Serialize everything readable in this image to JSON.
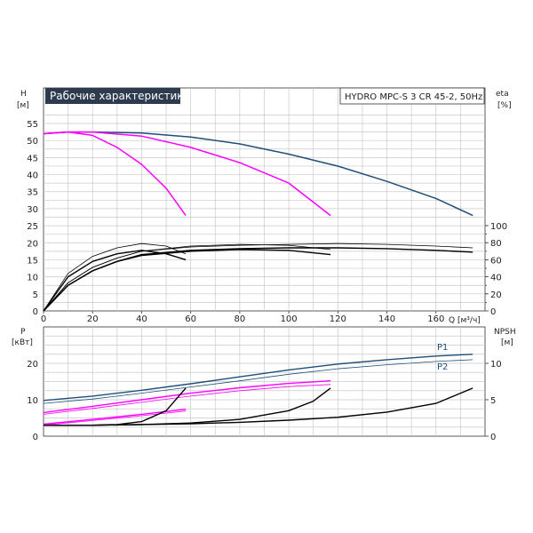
{
  "chart_data": [
    {
      "type": "line",
      "panel": "head-and-efficiency",
      "title": "Рабочие характеристики",
      "model": "HYDRO MPC-S 3 CR 45-2, 50Hz",
      "xlabel": "Q [м³/ч]",
      "x_axis_label": "Q",
      "x_axis_unit": "[м³/ч]",
      "ylabel_left": "H",
      "ylabel_left_unit": "[м]",
      "ylabel_right": "eta",
      "ylabel_right_unit": "[%]",
      "xlim": [
        0,
        180
      ],
      "ylim_left": [
        0,
        60
      ],
      "ylim_right": [
        0,
        100
      ],
      "x_ticks": [
        "0",
        "20",
        "40",
        "60",
        "80",
        "100",
        "120",
        "140",
        "160"
      ],
      "y_ticks_left": [
        "0",
        "5",
        "10",
        "15",
        "20",
        "25",
        "30",
        "35",
        "40",
        "45",
        "50",
        "55"
      ],
      "y_ticks_right": [
        "0",
        "20",
        "40",
        "60",
        "80",
        "100"
      ],
      "grid": true,
      "head_series": [
        {
          "color": "#1f4e79",
          "points": [
            [
              0,
              52
            ],
            [
              10,
              52.5
            ],
            [
              20,
              52.5
            ],
            [
              40,
              52.2
            ],
            [
              60,
              51
            ],
            [
              80,
              49
            ],
            [
              100,
              46
            ],
            [
              120,
              42.5
            ],
            [
              140,
              38
            ],
            [
              160,
              33
            ],
            [
              175,
              28
            ]
          ]
        },
        {
          "color": "#ff00ff",
          "points": [
            [
              0,
              52
            ],
            [
              10,
              52.5
            ],
            [
              20,
              52.5
            ],
            [
              40,
              51.3
            ],
            [
              60,
              48
            ],
            [
              80,
              43.5
            ],
            [
              100,
              37.5
            ],
            [
              117,
              28
            ]
          ]
        },
        {
          "color": "#ff00ff",
          "points": [
            [
              0,
              52
            ],
            [
              10,
              52.5
            ],
            [
              20,
              51.5
            ],
            [
              30,
              48
            ],
            [
              40,
              43
            ],
            [
              50,
              36
            ],
            [
              58,
              28
            ]
          ]
        }
      ],
      "efficiency_series": [
        {
          "color": "#000000",
          "points": [
            [
              0,
              0
            ],
            [
              10,
              30
            ],
            [
              20,
              47
            ],
            [
              30,
              58
            ],
            [
              40,
              66
            ],
            [
              60,
              71
            ],
            [
              80,
              73
            ],
            [
              100,
              74
            ],
            [
              120,
              74
            ],
            [
              140,
              73
            ],
            [
              160,
              71
            ],
            [
              175,
              69
            ]
          ]
        },
        {
          "color": "#000000",
          "points": [
            [
              0,
              0
            ],
            [
              10,
              33
            ],
            [
              20,
              51
            ],
            [
              30,
              62
            ],
            [
              40,
              70
            ],
            [
              60,
              75
            ],
            [
              80,
              77
            ],
            [
              100,
              78
            ],
            [
              120,
              79
            ],
            [
              140,
              78
            ],
            [
              160,
              76
            ],
            [
              175,
              74
            ]
          ]
        },
        {
          "color": "#000000",
          "points": [
            [
              0,
              0
            ],
            [
              10,
              30
            ],
            [
              20,
              47
            ],
            [
              30,
              58
            ],
            [
              40,
              65
            ],
            [
              60,
              70
            ],
            [
              80,
              72
            ],
            [
              100,
              71
            ],
            [
              117,
              66
            ]
          ]
        },
        {
          "color": "#000000",
          "points": [
            [
              0,
              0
            ],
            [
              10,
              33
            ],
            [
              20,
              51
            ],
            [
              30,
              62
            ],
            [
              40,
              70
            ],
            [
              60,
              76
            ],
            [
              80,
              78
            ],
            [
              100,
              77
            ],
            [
              117,
              72
            ]
          ]
        },
        {
          "color": "#000000",
          "points": [
            [
              0,
              0
            ],
            [
              10,
              40
            ],
            [
              20,
              58
            ],
            [
              30,
              67
            ],
            [
              40,
              71
            ],
            [
              50,
              67
            ],
            [
              58,
              60
            ]
          ]
        },
        {
          "color": "#000000",
          "points": [
            [
              0,
              0
            ],
            [
              10,
              44
            ],
            [
              20,
              64
            ],
            [
              30,
              74
            ],
            [
              40,
              79
            ],
            [
              50,
              76
            ],
            [
              58,
              67
            ]
          ]
        }
      ]
    },
    {
      "type": "line",
      "panel": "power-and-npsh",
      "ylabel_left": "P",
      "ylabel_left_unit": "[кВт]",
      "ylabel_right": "NPSH",
      "ylabel_right_unit": "[м]",
      "xlim": [
        0,
        180
      ],
      "ylim_left": [
        0,
        28
      ],
      "ylim_right": [
        0,
        14
      ],
      "y_ticks_left": [
        "0",
        "10",
        "20"
      ],
      "y_ticks_right": [
        "0",
        "5",
        "10"
      ],
      "grid": true,
      "power_series": [
        {
          "name": "P1",
          "color": "#1f4e79",
          "points": [
            [
              0,
              9.8
            ],
            [
              20,
              11
            ],
            [
              40,
              12.6
            ],
            [
              60,
              14.4
            ],
            [
              80,
              16.3
            ],
            [
              100,
              18.2
            ],
            [
              120,
              19.8
            ],
            [
              140,
              21
            ],
            [
              160,
              22
            ],
            [
              175,
              22.5
            ]
          ]
        },
        {
          "name": "P2",
          "color": "#1f4e79",
          "points": [
            [
              0,
              9
            ],
            [
              20,
              10.2
            ],
            [
              40,
              11.8
            ],
            [
              60,
              13.5
            ],
            [
              80,
              15.2
            ],
            [
              100,
              17
            ],
            [
              120,
              18.5
            ],
            [
              140,
              19.6
            ],
            [
              160,
              20.5
            ],
            [
              175,
              21
            ]
          ]
        },
        {
          "color": "#ff00ff",
          "points": [
            [
              0,
              6.5
            ],
            [
              20,
              8.2
            ],
            [
              40,
              10
            ],
            [
              60,
              11.8
            ],
            [
              80,
              13.3
            ],
            [
              100,
              14.5
            ],
            [
              117,
              15.2
            ]
          ]
        },
        {
          "color": "#ff00ff",
          "points": [
            [
              0,
              6
            ],
            [
              20,
              7.6
            ],
            [
              40,
              9.3
            ],
            [
              60,
              11
            ],
            [
              80,
              12.5
            ],
            [
              100,
              13.6
            ],
            [
              117,
              14.2
            ]
          ]
        },
        {
          "color": "#ff00ff",
          "points": [
            [
              0,
              3.3
            ],
            [
              20,
              4.6
            ],
            [
              40,
              6
            ],
            [
              58,
              7.4
            ]
          ]
        },
        {
          "color": "#ff00ff",
          "points": [
            [
              0,
              3
            ],
            [
              20,
              4.3
            ],
            [
              40,
              5.6
            ],
            [
              58,
              6.9
            ]
          ]
        }
      ],
      "npsh_series": [
        {
          "color": "#000000",
          "points": [
            [
              0,
              1.5
            ],
            [
              20,
              1.5
            ],
            [
              40,
              1.6
            ],
            [
              60,
              1.7
            ],
            [
              80,
              1.9
            ],
            [
              100,
              2.2
            ],
            [
              120,
              2.6
            ],
            [
              140,
              3.3
            ],
            [
              160,
              4.5
            ],
            [
              175,
              6.6
            ]
          ]
        },
        {
          "color": "#000000",
          "points": [
            [
              0,
              1.5
            ],
            [
              20,
              1.5
            ],
            [
              40,
              1.6
            ],
            [
              60,
              1.8
            ],
            [
              80,
              2.3
            ],
            [
              100,
              3.5
            ],
            [
              110,
              4.8
            ],
            [
              117,
              6.6
            ]
          ]
        },
        {
          "color": "#000000",
          "points": [
            [
              0,
              1.5
            ],
            [
              20,
              1.5
            ],
            [
              30,
              1.6
            ],
            [
              40,
              2
            ],
            [
              50,
              3.5
            ],
            [
              58,
              6.6
            ]
          ]
        }
      ],
      "annotations": [
        "P1",
        "P2"
      ]
    }
  ]
}
